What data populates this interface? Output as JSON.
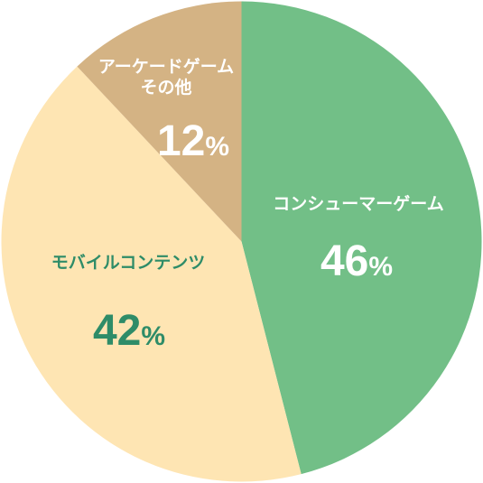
{
  "chart_data": {
    "type": "pie",
    "title": "",
    "slices": [
      {
        "label_lines": [
          "コンシューマーゲーム"
        ],
        "value": 46,
        "value_text": "46",
        "unit": "%",
        "color": "#72bf87",
        "label_color": "#ffffff"
      },
      {
        "label_lines": [
          "モバイルコンテンツ"
        ],
        "value": 42,
        "value_text": "42",
        "unit": "%",
        "color": "#fee5b3",
        "label_color": "#2e8c68"
      },
      {
        "label_lines": [
          "アーケードゲーム",
          "その他"
        ],
        "value": 12,
        "value_text": "12",
        "unit": "%",
        "color": "#d4b384",
        "label_color": "#ffffff"
      }
    ],
    "start_angle_deg": 0,
    "direction": "clockwise",
    "legend": "none"
  }
}
